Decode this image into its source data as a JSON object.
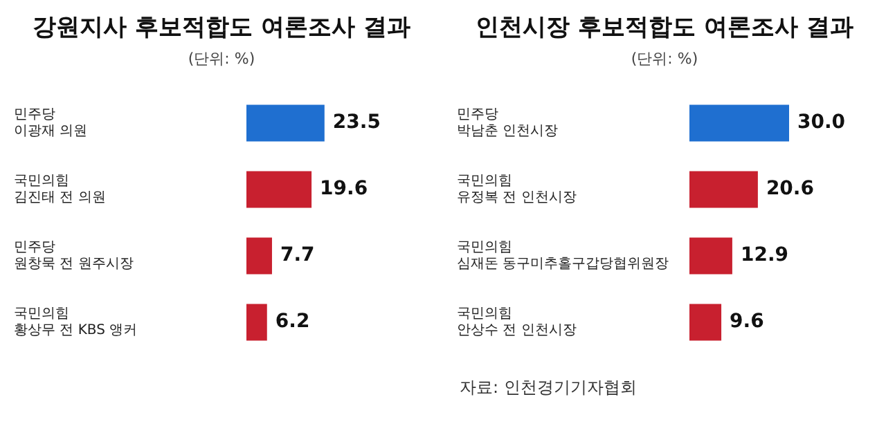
{
  "chart_data": [
    {
      "type": "bar",
      "orientation": "horizontal",
      "title": "강원지사 후보적합도 여론조사 결과",
      "subtitle": "(단위: %)",
      "categories": [
        "민주당\n이광재 의원",
        "국민의힘\n김진태 전 의원",
        "민주당\n원창묵 전 원주시장",
        "국민의힘\n황상무 전 KBS 앵커"
      ],
      "values": [
        23.5,
        19.6,
        7.7,
        6.2
      ],
      "value_labels": [
        "23.5",
        "19.6",
        "7.7",
        "6.2"
      ],
      "colors": [
        "#1f6fd0",
        "#c8202f",
        "#c8202f",
        "#c8202f"
      ]
    },
    {
      "type": "bar",
      "orientation": "horizontal",
      "title": "인천시장 후보적합도 여론조사 결과",
      "subtitle": "(단위: %)",
      "categories": [
        "민주당\n박남춘 인천시장",
        "국민의힘\n유정복 전 인천시장",
        "국민의힘\n심재돈 동구미추홀구갑당협위원장",
        "국민의힘\n안상수 전 인천시장"
      ],
      "values": [
        30.0,
        20.6,
        12.9,
        9.6
      ],
      "value_labels": [
        "30.0",
        "20.6",
        "12.9",
        "9.6"
      ],
      "colors": [
        "#1f6fd0",
        "#c8202f",
        "#c8202f",
        "#c8202f"
      ],
      "annotations": [
        "자료: 인천경기기자협회"
      ]
    }
  ]
}
